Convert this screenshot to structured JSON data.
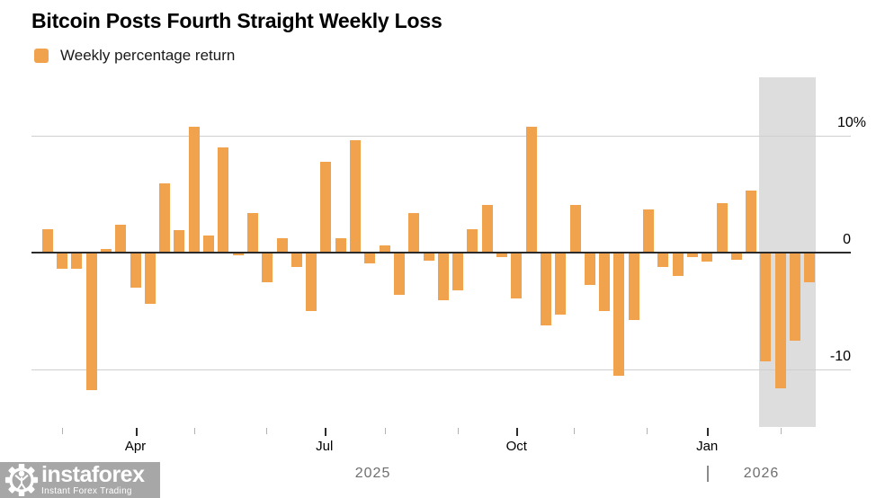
{
  "header": {
    "title": "Bitcoin Posts Fourth Straight Weekly Loss"
  },
  "legend": {
    "label": "Weekly percentage return"
  },
  "watermark": {
    "brand": "instaforex",
    "tagline": "Instant Forex Trading"
  },
  "chart_data": {
    "type": "bar",
    "title": "Bitcoin Posts Fourth Straight Weekly Loss",
    "series_name": "Weekly percentage return",
    "unit": "%",
    "bar_color": "#F0A24C",
    "highlight_color": "#DDDDDD",
    "grid": "horizontal",
    "ylim": [
      -13.5,
      15
    ],
    "yticks": [
      {
        "value": 10,
        "label": "10%"
      },
      {
        "value": 0,
        "label": "0"
      },
      {
        "value": -10,
        "label": "-10"
      }
    ],
    "xticks": [
      {
        "week": 2.0,
        "label": "",
        "month": "Mar",
        "major": false
      },
      {
        "week": 7.0,
        "label": "Apr",
        "month": "Apr",
        "major": true
      },
      {
        "week": 11.0,
        "label": "",
        "month": "May",
        "major": false
      },
      {
        "week": 15.9,
        "label": "",
        "month": "Jun",
        "major": false
      },
      {
        "week": 19.9,
        "label": "Jul",
        "month": "Jul",
        "major": true
      },
      {
        "week": 24.0,
        "label": "",
        "month": "Aug",
        "major": false
      },
      {
        "week": 29.0,
        "label": "",
        "month": "Sep",
        "major": false
      },
      {
        "week": 33.0,
        "label": "Oct",
        "month": "Oct",
        "major": true
      },
      {
        "week": 36.9,
        "label": "",
        "month": "Nov",
        "major": false
      },
      {
        "week": 41.9,
        "label": "",
        "month": "Dec",
        "major": false
      },
      {
        "week": 46.0,
        "label": "Jan",
        "month": "Jan",
        "major": true
      },
      {
        "week": 51.0,
        "label": "",
        "month": "Feb",
        "major": false
      }
    ],
    "year_labels": [
      {
        "label": "2025",
        "week": 23.2
      },
      {
        "label": "2026",
        "week": 49.7,
        "divider_week": 46.0
      }
    ],
    "highlight_band": {
      "from_bar": 50,
      "to_bar": 53
    },
    "values": [
      2.0,
      -1.4,
      -1.4,
      -11.8,
      0.3,
      2.4,
      -3.0,
      -4.4,
      5.9,
      1.9,
      10.8,
      1.5,
      9.0,
      -0.2,
      3.4,
      -2.5,
      1.2,
      -1.2,
      -5.0,
      7.8,
      1.2,
      9.6,
      -0.9,
      0.6,
      -3.6,
      3.4,
      -0.7,
      -4.1,
      -3.2,
      2.0,
      4.1,
      -0.4,
      -3.9,
      10.8,
      -6.2,
      -5.3,
      4.1,
      -2.8,
      -5.0,
      -10.5,
      -5.8,
      3.7,
      -1.2,
      -2.0,
      -0.4,
      -0.8,
      4.2,
      -0.6,
      5.3,
      -9.3,
      -11.6,
      -7.5,
      -2.5
    ]
  }
}
